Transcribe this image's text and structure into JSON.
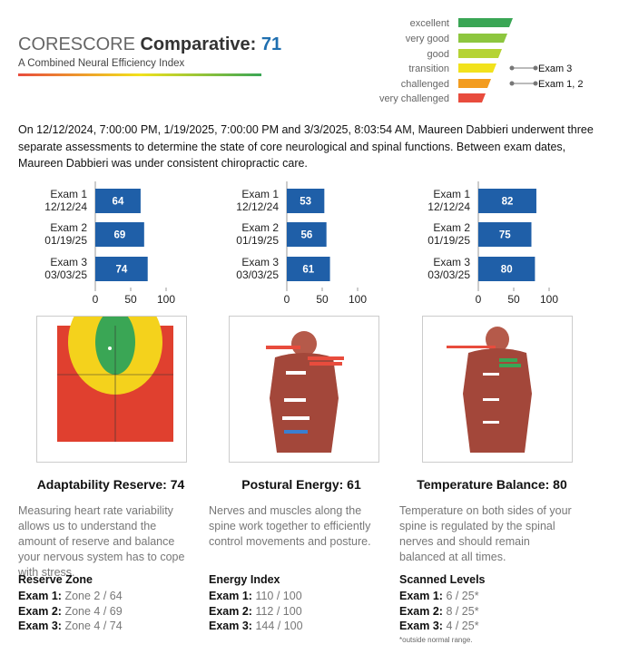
{
  "header": {
    "brand": "CORESCORE",
    "label": "Comparative:",
    "score": "71",
    "subtitle": "A Combined Neural Efficiency Index"
  },
  "scale": {
    "levels": [
      {
        "name": "excellent",
        "color": "#3aa655"
      },
      {
        "name": "very good",
        "color": "#8dc63f"
      },
      {
        "name": "good",
        "color": "#b5d334"
      },
      {
        "name": "transition",
        "color": "#f2e21c"
      },
      {
        "name": "challenged",
        "color": "#f39c1f"
      },
      {
        "name": "very challenged",
        "color": "#e84c3d"
      }
    ],
    "markers": [
      {
        "label": "Exam 3",
        "level": 3
      },
      {
        "label": "Exam 1, 2",
        "level": 4
      }
    ]
  },
  "intro": "On 12/12/2024, 7:00:00 PM, 1/19/2025, 7:00:00 PM and 3/3/2025, 8:03:54 AM, Maureen Dabbieri underwent three separate assessments to determine the state of core neurological and spinal functions. Between exam dates, Maureen Dabbieri was under consistent chiropractic care.",
  "chart_data": [
    {
      "type": "bar",
      "orientation": "horizontal",
      "color": "#1f5fa8",
      "categories": [
        [
          "Exam 1",
          "12/12/24"
        ],
        [
          "Exam 2",
          "01/19/25"
        ],
        [
          "Exam 3",
          "03/03/25"
        ]
      ],
      "values": [
        64,
        69,
        74
      ],
      "xlim": [
        0,
        100
      ],
      "xticks": [
        0,
        50,
        100
      ]
    },
    {
      "type": "bar",
      "orientation": "horizontal",
      "color": "#1f5fa8",
      "categories": [
        [
          "Exam 1",
          "12/12/24"
        ],
        [
          "Exam 2",
          "01/19/25"
        ],
        [
          "Exam 3",
          "03/03/25"
        ]
      ],
      "values": [
        53,
        56,
        61
      ],
      "xlim": [
        0,
        100
      ],
      "xticks": [
        0,
        50,
        100
      ]
    },
    {
      "type": "bar",
      "orientation": "horizontal",
      "color": "#1f5fa8",
      "categories": [
        [
          "Exam 1",
          "12/12/24"
        ],
        [
          "Exam 2",
          "01/19/25"
        ],
        [
          "Exam 3",
          "03/03/25"
        ]
      ],
      "values": [
        82,
        75,
        80
      ],
      "xlim": [
        0,
        100
      ],
      "xticks": [
        0,
        50,
        100
      ]
    }
  ],
  "panels": [
    {
      "title": "Adaptability Reserve: 74",
      "description": "Measuring heart rate variability allows us to understand the amount of reserve and balance your nervous system has to cope with stress.",
      "section": "Reserve Zone",
      "rows": [
        {
          "label": "Exam 1:",
          "value": "Zone 2 / 64"
        },
        {
          "label": "Exam 2:",
          "value": "Zone 4 / 69"
        },
        {
          "label": "Exam 3:",
          "value": "Zone 4 / 74"
        }
      ]
    },
    {
      "title": "Postural Energy: 61",
      "description": "Nerves and muscles along the spine work together to efficiently control movements and posture.",
      "section": "Energy Index",
      "rows": [
        {
          "label": "Exam 1:",
          "value": "110 / 100"
        },
        {
          "label": "Exam 2:",
          "value": "112 / 100"
        },
        {
          "label": "Exam 3:",
          "value": "144 / 100"
        }
      ]
    },
    {
      "title": "Temperature Balance: 80",
      "description": "Temperature on both sides of your spine is regulated by the spinal nerves and should remain balanced at all times.",
      "section": "Scanned Levels",
      "rows": [
        {
          "label": "Exam 1:",
          "value": "6 / 25*"
        },
        {
          "label": "Exam 2:",
          "value": "8 / 25*"
        },
        {
          "label": "Exam 3:",
          "value": "4 / 25*"
        }
      ],
      "footnote": "*outside normal range."
    }
  ]
}
